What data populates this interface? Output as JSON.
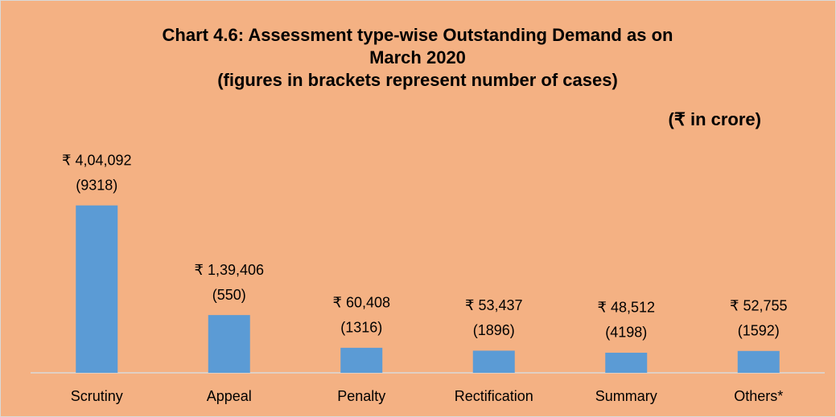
{
  "chart_data": {
    "type": "bar",
    "title": "Chart 4.6: Assessment type-wise Outstanding Demand as on",
    "title_line2": "March 2020",
    "subtitle": "(figures in brackets represent number of cases)",
    "unit_note": "(₹ in crore)",
    "categories": [
      "Scrutiny",
      "Appeal",
      "Penalty",
      "Rectification",
      "Summary",
      "Others*"
    ],
    "values": [
      404092,
      139406,
      60408,
      53437,
      48512,
      52755
    ],
    "value_labels": [
      "₹ 4,04,092",
      "₹ 1,39,406",
      "₹ 60,408",
      "₹ 53,437",
      "₹ 48,512",
      "₹ 52,755"
    ],
    "case_labels": [
      "(9318)",
      "(550)",
      "(1316)",
      "(1896)",
      "(4198)",
      "(1592)"
    ],
    "color": "#5b9bd5",
    "ylim": [
      0,
      450000
    ]
  }
}
